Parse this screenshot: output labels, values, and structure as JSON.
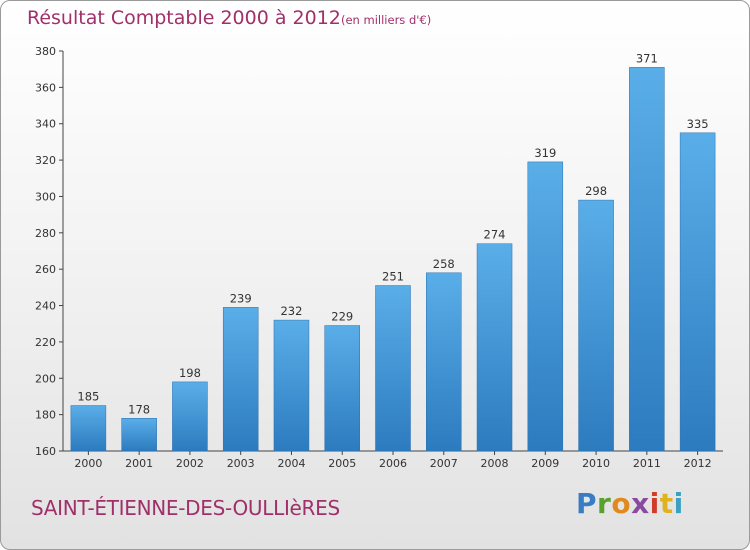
{
  "header": {
    "title": "Résultat Comptable 2000 à 2012",
    "subtitle": "(en milliers d'€)"
  },
  "footer": {
    "commune": "SAINT-ÉTIENNE-DES-OULLIèRES",
    "logo_letters": [
      "P",
      "r",
      "o",
      "x",
      "i",
      "t",
      "i"
    ]
  },
  "colors": {
    "title": "#a0306a",
    "bar_light": "#5aaee8",
    "bar_dark": "#2c7bbf"
  },
  "chart_data": {
    "type": "bar",
    "title": "Résultat Comptable 2000 à 2012",
    "xlabel": "",
    "ylabel": "",
    "categories": [
      "2000",
      "2001",
      "2002",
      "2003",
      "2004",
      "2005",
      "2006",
      "2007",
      "2008",
      "2009",
      "2010",
      "2011",
      "2012"
    ],
    "values": [
      185,
      178,
      198,
      239,
      232,
      229,
      251,
      258,
      274,
      319,
      298,
      371,
      335
    ],
    "ylim": [
      160,
      380
    ],
    "yticks": [
      160,
      180,
      200,
      220,
      240,
      260,
      280,
      300,
      320,
      340,
      360,
      380
    ],
    "grid": false,
    "legend": "none"
  }
}
